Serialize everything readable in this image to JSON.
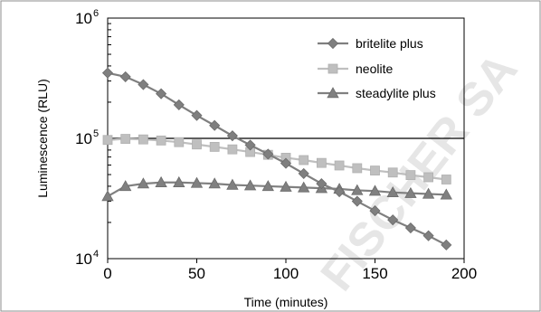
{
  "chart_data": {
    "type": "line",
    "xlabel": "Time (minutes)",
    "ylabel": "Luminescence (RLU)",
    "xlim": [
      0,
      200
    ],
    "ylim": [
      10000,
      1000000
    ],
    "yscale": "log",
    "x_ticks": [
      "0",
      "50",
      "100",
      "150",
      "200"
    ],
    "y_ticks": [
      {
        "base": "10",
        "exp": "4"
      },
      {
        "base": "10",
        "exp": "5"
      },
      {
        "base": "10",
        "exp": "6"
      }
    ],
    "y_tick_values": [
      10000,
      100000,
      1000000
    ],
    "x_tick_values": [
      0,
      50,
      100,
      150,
      200
    ],
    "reference_line": 100000,
    "legend_position": "top-right",
    "x": [
      0,
      10,
      20,
      30,
      40,
      50,
      60,
      70,
      80,
      90,
      100,
      110,
      120,
      130,
      140,
      150,
      160,
      170,
      180,
      190
    ],
    "series": [
      {
        "name": "britelite plus",
        "marker": "diamond",
        "color": "#7f7f7f",
        "values": [
          350000,
          325000,
          280000,
          235000,
          190000,
          155000,
          128000,
          105000,
          88000,
          74000,
          62000,
          51000,
          42000,
          36000,
          30000,
          25000,
          21000,
          18000,
          15500,
          13000
        ]
      },
      {
        "name": "neolite",
        "marker": "square",
        "color": "#bfbfbf",
        "values": [
          97000,
          99000,
          98000,
          96000,
          93000,
          89000,
          85000,
          81000,
          77000,
          73000,
          69000,
          66000,
          62500,
          59500,
          56500,
          54000,
          52000,
          49500,
          47500,
          45500
        ]
      },
      {
        "name": "steadylite plus",
        "marker": "triangle",
        "color": "#808080",
        "values": [
          33000,
          40000,
          42000,
          43000,
          43000,
          42500,
          42000,
          41000,
          40500,
          40000,
          39500,
          39000,
          38500,
          38000,
          37000,
          36500,
          35500,
          35000,
          34500,
          34000
        ]
      }
    ]
  },
  "watermark_text": "FISCHER SA"
}
